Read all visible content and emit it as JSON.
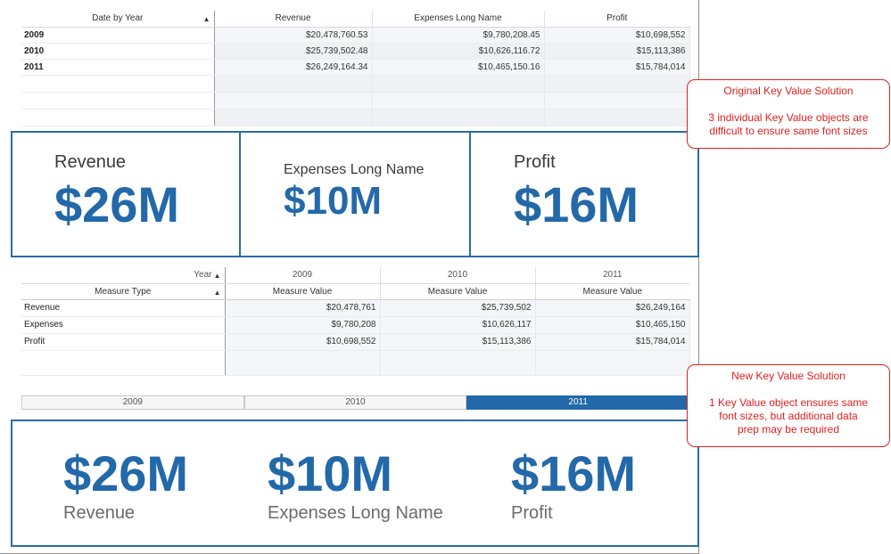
{
  "table1": {
    "columns": [
      "Date by Year",
      "Revenue",
      "Expenses Long Name",
      "Profit"
    ],
    "rows": [
      {
        "year": "2009",
        "revenue": "$20,478,760.53",
        "expenses": "$9,780,208.45",
        "profit": "$10,698,552"
      },
      {
        "year": "2010",
        "revenue": "$25,739,502.48",
        "expenses": "$10,626,116.72",
        "profit": "$15,113,386"
      },
      {
        "year": "2011",
        "revenue": "$26,249,164.34",
        "expenses": "$10,465,150.16",
        "profit": "$15,784,014"
      }
    ]
  },
  "kpi_row1": {
    "revenue": {
      "label": "Revenue",
      "value": "$26M"
    },
    "expenses": {
      "label": "Expenses Long Name",
      "value": "$10M"
    },
    "profit": {
      "label": "Profit",
      "value": "$16M"
    }
  },
  "table2": {
    "year_header": "Year",
    "years": [
      "2009",
      "2010",
      "2011"
    ],
    "measure_type_header": "Measure Type",
    "measure_value_header": "Measure Value",
    "rows": [
      {
        "type": "Revenue",
        "v2009": "$20,478,761",
        "v2010": "$25,739,502",
        "v2011": "$26,249,164"
      },
      {
        "type": "Expenses",
        "v2009": "$9,780,208",
        "v2010": "$10,626,117",
        "v2011": "$10,465,150"
      },
      {
        "type": "Profit",
        "v2009": "$10,698,552",
        "v2010": "$15,113,386",
        "v2011": "$15,784,014"
      }
    ]
  },
  "button_bar": {
    "buttons": [
      "2009",
      "2010",
      "2011"
    ],
    "selected": "2011"
  },
  "kpi_row2": {
    "items": [
      {
        "value": "$26M",
        "label": "Revenue"
      },
      {
        "value": "$10M",
        "label": "Expenses Long Name"
      },
      {
        "value": "$16M",
        "label": "Profit"
      }
    ]
  },
  "callout1": {
    "title": "Original Key Value Solution",
    "line1": "3 individual Key Value objects are",
    "line2": "difficult to ensure same font sizes"
  },
  "callout2": {
    "title": "New Key Value Solution",
    "line1": "1 Key Value object ensures same",
    "line2": "font sizes, but additional data",
    "line3": "prep may be required"
  },
  "colors": {
    "accent": "#2369a9",
    "border_blue": "#2b6cab",
    "callout_red": "#e02020"
  }
}
